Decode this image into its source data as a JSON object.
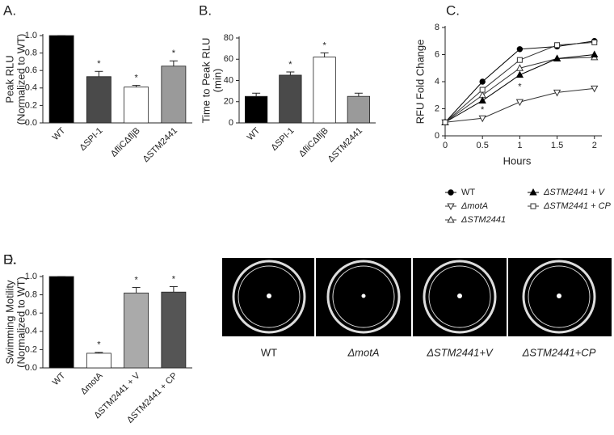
{
  "chart_data": [
    {
      "type": "bar",
      "panel": "A.",
      "ylabel": [
        "Peak RLU",
        "(Normalized to WT)"
      ],
      "categories": [
        "WT",
        "ΔSPI-1",
        "ΔfliCΔfljB",
        "ΔSTM2441"
      ],
      "values": [
        1.0,
        0.53,
        0.41,
        0.65
      ],
      "errors": [
        0,
        0.06,
        0.02,
        0.06
      ],
      "colors": [
        "#000000",
        "#4a4a4a",
        "#ffffff",
        "#9a9a9a"
      ],
      "ylim": [
        0,
        1
      ],
      "yticks": [
        {
          "value": 0,
          "label": "0.0"
        },
        0.2,
        0.4,
        0.6,
        0.8,
        {
          "value": 1,
          "label": "1.0"
        }
      ],
      "annotations": [
        {
          "text": "*",
          "category": "ΔSPI-1"
        },
        {
          "text": "*",
          "category": "ΔfliCΔfljB"
        },
        {
          "text": "*",
          "category": "ΔSTM2441"
        }
      ]
    },
    {
      "type": "bar",
      "panel": "B.",
      "ylabel": [
        "Time to Peak RLU",
        "(min)"
      ],
      "categories": [
        "WT",
        "ΔSPI-1",
        "ΔfliCΔfljB",
        "ΔSTM2441"
      ],
      "values": [
        25,
        45,
        62,
        25
      ],
      "errors": [
        3,
        3,
        4,
        3
      ],
      "colors": [
        "#000000",
        "#4a4a4a",
        "#ffffff",
        "#9a9a9a"
      ],
      "ylim": [
        0,
        80
      ],
      "yticks": [
        0,
        20,
        40,
        60,
        80
      ],
      "annotations": [
        {
          "text": "*",
          "category": "ΔSPI-1"
        },
        {
          "text": "*",
          "category": "ΔfliCΔfljB"
        }
      ]
    },
    {
      "type": "line",
      "panel": "C.",
      "ylabel": [
        "RFU Fold Change"
      ],
      "xlabel": "Hours",
      "x": [
        0,
        0.5,
        1,
        1.5,
        2
      ],
      "xlim": [
        0,
        2.1
      ],
      "xticks": [
        0,
        0.5,
        1,
        1.5,
        2
      ],
      "ylim": [
        0,
        8
      ],
      "yticks": [
        0,
        2,
        4,
        6,
        8
      ],
      "series": [
        {
          "name": "WT",
          "color": "#000000",
          "marker": "circle",
          "filled": true,
          "values": [
            1,
            4.0,
            6.4,
            6.6,
            7.0
          ]
        },
        {
          "name": "ΔmotA",
          "color": "#333333",
          "marker": "triangle-down",
          "filled": false,
          "values": [
            1,
            1.3,
            2.5,
            3.2,
            3.5
          ]
        },
        {
          "name": "ΔSTM2441",
          "color": "#333333",
          "marker": "triangle-up",
          "filled": false,
          "values": [
            1,
            3.0,
            5.0,
            5.7,
            5.8
          ]
        },
        {
          "name": "ΔSTM2441 + V",
          "color": "#000000",
          "marker": "triangle-up",
          "filled": true,
          "values": [
            1,
            2.6,
            4.5,
            5.7,
            6.0
          ]
        },
        {
          "name": "ΔSTM2441 + CP",
          "color": "#333333",
          "marker": "square",
          "filled": false,
          "values": [
            1,
            3.4,
            5.6,
            6.7,
            6.9
          ]
        }
      ],
      "annotations": [
        {
          "text": "*",
          "x": 0.5,
          "y": 1.9
        },
        {
          "text": "*",
          "x": 1,
          "y": 3.6
        }
      ]
    },
    {
      "type": "bar",
      "panel": "D.",
      "ylabel": [
        "Swimming Motility",
        "(Normalized to WT)"
      ],
      "categories": [
        "WT",
        "ΔmotA",
        "ΔSTM2441 + V",
        "ΔSTM2441 + CP"
      ],
      "values": [
        1.0,
        0.16,
        0.82,
        0.83
      ],
      "errors": [
        0,
        0.01,
        0.06,
        0.06
      ],
      "colors": [
        "#000000",
        "#ffffff",
        "#aaaaaa",
        "#555555"
      ],
      "ylim": [
        0,
        1
      ],
      "yticks": [
        {
          "value": 0,
          "label": "0.0"
        },
        0.2,
        0.4,
        0.6,
        0.8,
        {
          "value": 1,
          "label": "1.0"
        }
      ],
      "annotations": [
        {
          "text": "*",
          "category": "ΔmotA"
        },
        {
          "text": "*",
          "category": "ΔSTM2441 + V"
        },
        {
          "text": "*",
          "category": "ΔSTM2441 + CP"
        }
      ]
    }
  ],
  "panel_e": {
    "panel": "E.",
    "labels": [
      "WT",
      "ΔmotA",
      "ΔSTM2441+V",
      "ΔSTM2441+CP"
    ]
  }
}
